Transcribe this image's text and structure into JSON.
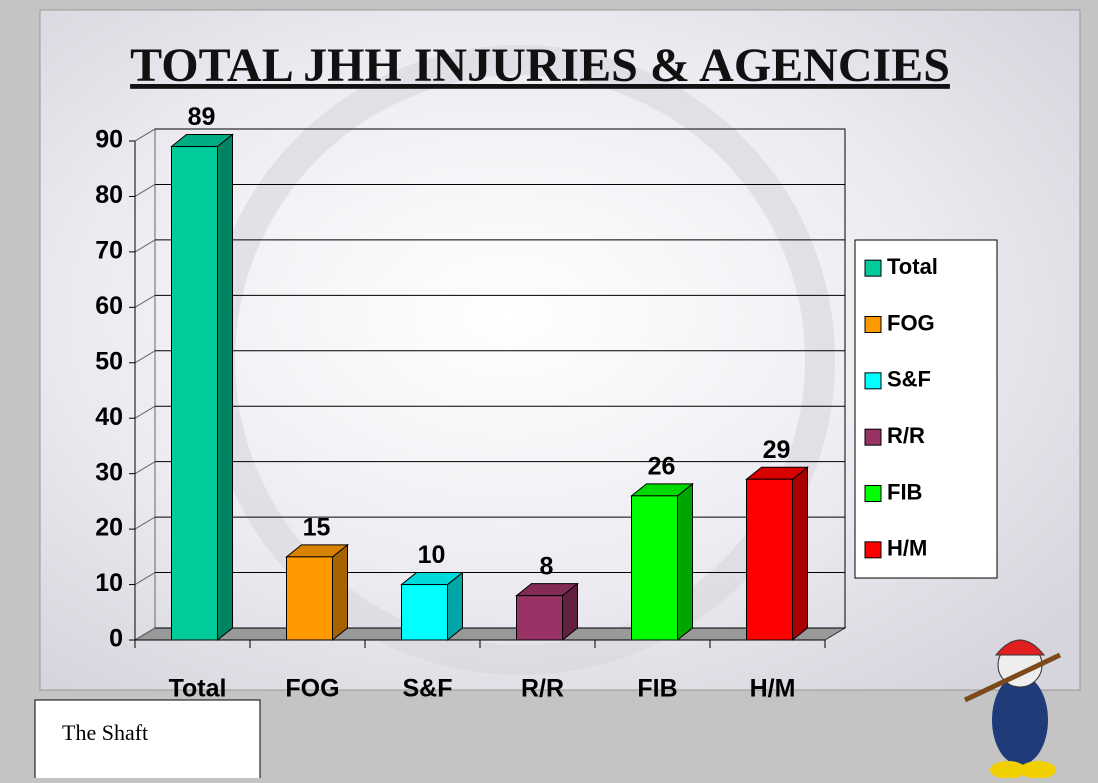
{
  "chart_data": {
    "type": "bar3d",
    "title": "TOTAL JHH INJURIES & AGENCIES",
    "categories": [
      "Total",
      "FOG",
      "S&F",
      "R/R",
      "FIB",
      "H/M"
    ],
    "values": [
      89,
      15,
      10,
      8,
      26,
      29
    ],
    "colors": [
      "#00cc99",
      "#ff9900",
      "#00ffff",
      "#993366",
      "#00ff00",
      "#ff0000"
    ],
    "ylim": [
      0,
      90
    ],
    "yticks": [
      0,
      10,
      20,
      30,
      40,
      50,
      60,
      70,
      80,
      90
    ],
    "grid": true,
    "legend": "right"
  },
  "text_box": "The Shaft"
}
